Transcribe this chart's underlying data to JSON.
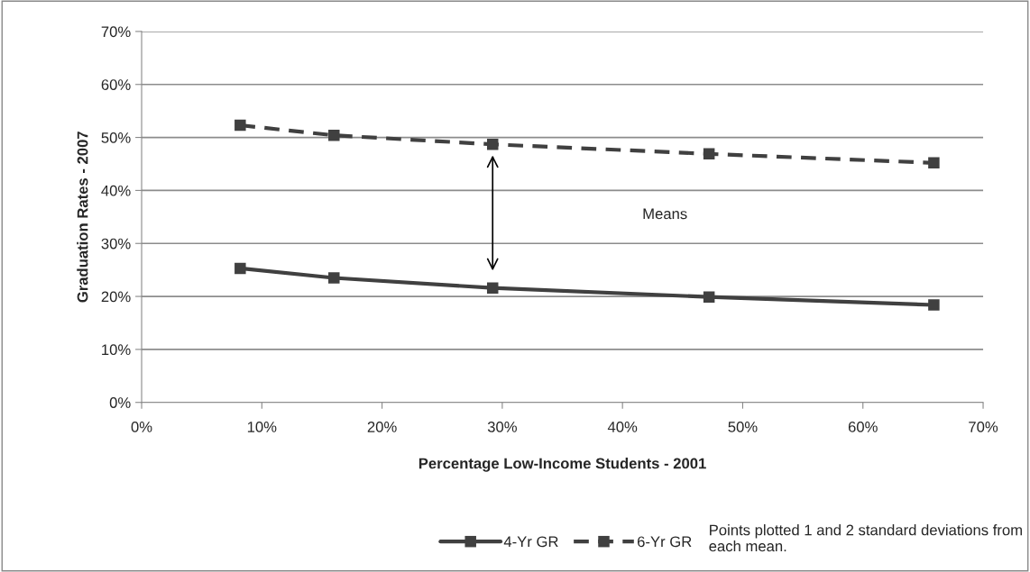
{
  "chart_data": {
    "type": "line",
    "xlabel": "Percentage Low-Income Students - 2001",
    "ylabel": "Graduation Rates - 2007",
    "x": [
      8.2,
      16.0,
      29.2,
      47.2,
      65.9
    ],
    "series": [
      {
        "name": "4-Yr GR",
        "color": "#404040",
        "values": [
          25.3,
          23.5,
          21.6,
          19.9,
          18.4
        ],
        "line_style": "solid"
      },
      {
        "name": "6-Yr GR",
        "color": "#404040",
        "values": [
          52.3,
          50.4,
          48.7,
          46.9,
          45.2
        ],
        "line_style": "dashed"
      }
    ],
    "marker": "square",
    "xlim": [
      0,
      70
    ],
    "ylim": [
      0,
      70
    ],
    "xticks": [
      {
        "value": 0,
        "label": "0%"
      },
      {
        "value": 10,
        "label": "10%"
      },
      {
        "value": 20,
        "label": "20%"
      },
      {
        "value": 30,
        "label": "30%"
      },
      {
        "value": 40,
        "label": "40%"
      },
      {
        "value": 50,
        "label": "50%"
      },
      {
        "value": 60,
        "label": "60%"
      },
      {
        "value": 70,
        "label": "70%"
      }
    ],
    "yticks": [
      {
        "value": 0,
        "label": "0%"
      },
      {
        "value": 10,
        "label": "10%"
      },
      {
        "value": 20,
        "label": "20%"
      },
      {
        "value": 30,
        "label": "30%"
      },
      {
        "value": 40,
        "label": "40%"
      },
      {
        "value": 50,
        "label": "50%"
      },
      {
        "value": 60,
        "label": "60%"
      },
      {
        "value": 70,
        "label": "70%"
      }
    ],
    "grid": "y",
    "legend": "bottom",
    "annotations": [
      "Means",
      "Points plotted 1 and 2 standard deviations from each mean."
    ]
  }
}
